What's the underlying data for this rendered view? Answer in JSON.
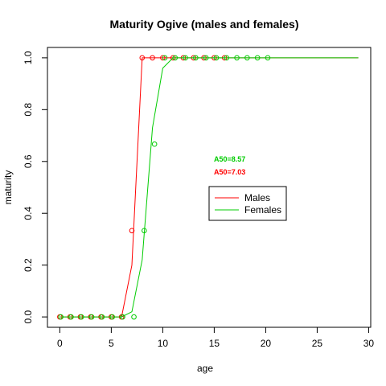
{
  "chart_data": {
    "type": "line",
    "title": "Maturity Ogive (males and females)",
    "xlabel": "age",
    "ylabel": "maturity",
    "xlim": [
      -1.2,
      30.2
    ],
    "ylim": [
      -0.04,
      1.04
    ],
    "xticks": [
      0,
      5,
      10,
      15,
      20,
      25,
      30
    ],
    "yticks": [
      0.0,
      0.2,
      0.4,
      0.6,
      0.8,
      1.0
    ],
    "ytick_labels": [
      "0.0",
      "0.2",
      "0.4",
      "0.6",
      "0.8",
      "1.0"
    ],
    "grid": false,
    "legend_position": "center-right",
    "series": [
      {
        "name": "Males",
        "color": "#ff0000",
        "line": {
          "x": [
            0,
            1,
            2,
            3,
            4,
            5,
            6,
            7,
            8,
            9,
            10,
            11,
            12,
            13,
            14,
            15,
            16,
            17,
            18,
            19,
            20,
            21,
            22,
            23,
            24,
            25,
            26,
            27,
            28,
            29
          ],
          "y": [
            0,
            0,
            0,
            0,
            0,
            0,
            0,
            0.2,
            1,
            1,
            1,
            1,
            1,
            1,
            1,
            1,
            1,
            1,
            1,
            1,
            1,
            1,
            1,
            1,
            1,
            1,
            1,
            1,
            1,
            1
          ]
        },
        "points": {
          "x": [
            0,
            1,
            2,
            3,
            4,
            5,
            6,
            7,
            8,
            9,
            10,
            11,
            12,
            13,
            14,
            15,
            16
          ],
          "y": [
            0,
            0,
            0,
            0,
            0,
            0,
            0,
            0.333,
            1,
            1,
            1,
            1,
            1,
            1,
            1,
            1,
            1
          ]
        }
      },
      {
        "name": "Females",
        "color": "#00cc00",
        "line": {
          "x": [
            0,
            1,
            2,
            3,
            4,
            5,
            6,
            7,
            8,
            9,
            10,
            11,
            12,
            13,
            14,
            15,
            16,
            17,
            18,
            19,
            20,
            21,
            22,
            23,
            24,
            25,
            26,
            27,
            28,
            29
          ],
          "y": [
            0,
            0,
            0,
            0,
            0,
            0,
            0,
            0.02,
            0.22,
            0.73,
            0.96,
            1,
            1,
            1,
            1,
            1,
            1,
            1,
            1,
            1,
            1,
            1,
            1,
            1,
            1,
            1,
            1,
            1,
            1,
            1
          ]
        },
        "points": {
          "x": [
            0.1,
            1.1,
            2.1,
            3.1,
            4.1,
            5.1,
            6.1,
            7.2,
            8.2,
            9.2,
            10.2,
            11.2,
            12.2,
            13.2,
            14.2,
            15.2,
            16.2,
            17.2,
            18.2,
            19.2,
            20.2
          ],
          "y": [
            0,
            0,
            0,
            0,
            0,
            0,
            0,
            0,
            0.333,
            0.667,
            1,
            1,
            1,
            1,
            1,
            1,
            1,
            1,
            1,
            1,
            1
          ]
        }
      }
    ],
    "annotations": [
      {
        "text": "A50=8.57",
        "x": 16.5,
        "y": 0.6,
        "color": "#00cc00"
      },
      {
        "text": "A50=7.03",
        "x": 16.5,
        "y": 0.55,
        "color": "#ff0000"
      }
    ]
  }
}
